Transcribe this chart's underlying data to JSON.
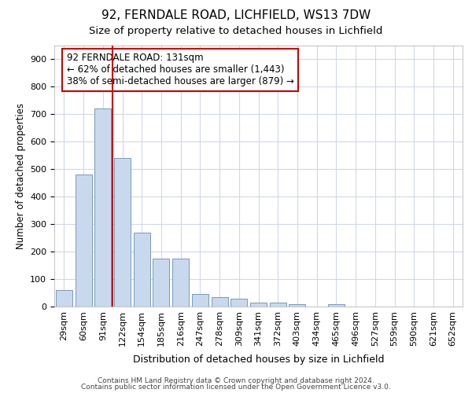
{
  "title1": "92, FERNDALE ROAD, LICHFIELD, WS13 7DW",
  "title2": "Size of property relative to detached houses in Lichfield",
  "xlabel": "Distribution of detached houses by size in Lichfield",
  "ylabel": "Number of detached properties",
  "footer1": "Contains HM Land Registry data © Crown copyright and database right 2024.",
  "footer2": "Contains public sector information licensed under the Open Government Licence v3.0.",
  "categories": [
    "29sqm",
    "60sqm",
    "91sqm",
    "122sqm",
    "154sqm",
    "185sqm",
    "216sqm",
    "247sqm",
    "278sqm",
    "309sqm",
    "341sqm",
    "372sqm",
    "403sqm",
    "434sqm",
    "465sqm",
    "496sqm",
    "527sqm",
    "559sqm",
    "590sqm",
    "621sqm",
    "652sqm"
  ],
  "values": [
    60,
    480,
    720,
    540,
    270,
    175,
    175,
    47,
    35,
    30,
    15,
    15,
    10,
    0,
    8,
    0,
    0,
    0,
    0,
    0,
    0
  ],
  "bar_color": "#c8d9ee",
  "bar_edge_color": "#7799bb",
  "annotation_text_line1": "92 FERNDALE ROAD: 131sqm",
  "annotation_text_line2": "← 62% of detached houses are smaller (1,443)",
  "annotation_text_line3": "38% of semi-detached houses are larger (879) →",
  "annotation_box_color": "#ffffff",
  "annotation_border_color": "#cc0000",
  "red_line_x": 2.5,
  "ylim": [
    0,
    950
  ],
  "yticks": [
    0,
    100,
    200,
    300,
    400,
    500,
    600,
    700,
    800,
    900
  ],
  "background_color": "#ffffff",
  "grid_color": "#d0d8e8",
  "title1_fontsize": 11,
  "title2_fontsize": 9.5,
  "xlabel_fontsize": 9,
  "ylabel_fontsize": 8.5,
  "tick_fontsize": 8,
  "footer_fontsize": 6.5,
  "annotation_fontsize": 8.5
}
